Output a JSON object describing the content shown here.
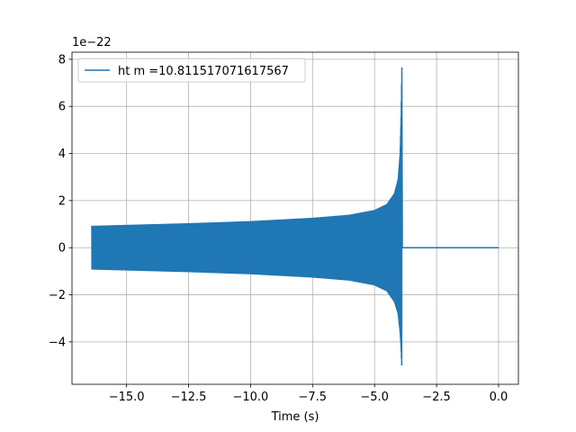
{
  "chart_data": {
    "type": "line",
    "xlabel": "Time (s)",
    "ylabel": "",
    "offset_text": "1e−22",
    "xlim": [
      -17.2,
      0.8
    ],
    "ylim": [
      -5.8,
      8.3
    ],
    "xticks": [
      -15.0,
      -12.5,
      -10.0,
      -7.5,
      -5.0,
      -2.5,
      0.0
    ],
    "xtick_labels": [
      "−15.0",
      "−12.5",
      "−10.0",
      "−7.5",
      "−5.0",
      "−2.5",
      "0.0"
    ],
    "yticks": [
      -4,
      -2,
      0,
      2,
      4,
      6,
      8
    ],
    "ytick_labels": [
      "−4",
      "−2",
      "0",
      "2",
      "4",
      "6",
      "8"
    ],
    "grid": true,
    "legend_position": "top-left",
    "series": [
      {
        "name": "ht m =10.811517071617567",
        "color": "#1f77b4",
        "t_start": -16.4,
        "t_merger": -3.9,
        "t_end": 0.0,
        "upper_envelope": [
          [
            -16.4,
            0.93
          ],
          [
            -15.0,
            0.97
          ],
          [
            -12.5,
            1.04
          ],
          [
            -10.0,
            1.13
          ],
          [
            -7.5,
            1.27
          ],
          [
            -6.0,
            1.4
          ],
          [
            -5.0,
            1.6
          ],
          [
            -4.5,
            1.85
          ],
          [
            -4.2,
            2.3
          ],
          [
            -4.05,
            2.9
          ],
          [
            -3.97,
            4.0
          ],
          [
            -3.93,
            5.6
          ],
          [
            -3.9,
            7.65
          ]
        ],
        "lower_envelope": [
          [
            -16.4,
            -0.93
          ],
          [
            -15.0,
            -0.97
          ],
          [
            -12.5,
            -1.04
          ],
          [
            -10.0,
            -1.13
          ],
          [
            -7.5,
            -1.27
          ],
          [
            -6.0,
            -1.4
          ],
          [
            -5.0,
            -1.6
          ],
          [
            -4.5,
            -1.85
          ],
          [
            -4.2,
            -2.3
          ],
          [
            -4.05,
            -2.8
          ],
          [
            -3.97,
            -3.6
          ],
          [
            -3.93,
            -4.3
          ],
          [
            -3.9,
            -5.15
          ]
        ],
        "post_merger_value": 0.0
      }
    ]
  }
}
